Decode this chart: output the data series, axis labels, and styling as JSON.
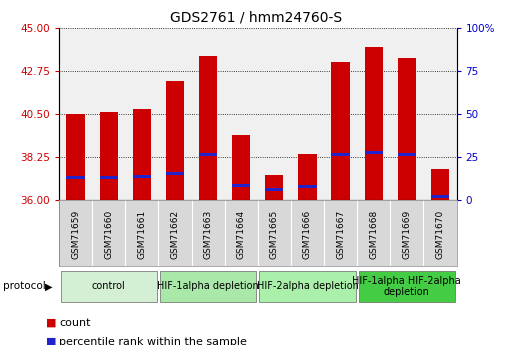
{
  "title": "GDS2761 / hmm24760-S",
  "samples": [
    "GSM71659",
    "GSM71660",
    "GSM71661",
    "GSM71662",
    "GSM71663",
    "GSM71664",
    "GSM71665",
    "GSM71666",
    "GSM71667",
    "GSM71668",
    "GSM71669",
    "GSM71670"
  ],
  "bar_values": [
    40.5,
    40.6,
    40.75,
    42.2,
    43.5,
    39.4,
    37.3,
    38.4,
    43.2,
    44.0,
    43.4,
    37.6
  ],
  "blue_values": [
    37.1,
    37.1,
    37.15,
    37.3,
    38.3,
    36.7,
    36.5,
    36.65,
    38.3,
    38.4,
    38.3,
    36.1
  ],
  "y_min": 36,
  "y_max": 45,
  "y_ticks_left": [
    36,
    38.25,
    40.5,
    42.75,
    45
  ],
  "y_ticks_right": [
    0,
    25,
    50,
    75,
    100
  ],
  "bar_color": "#cc0000",
  "blue_color": "#2222cc",
  "bar_width": 0.55,
  "groups": [
    {
      "label": "control",
      "start": 0,
      "end": 3,
      "color": "#d4f0d4"
    },
    {
      "label": "HIF-1alpha depletion",
      "start": 3,
      "end": 6,
      "color": "#aae8aa"
    },
    {
      "label": "HIF-2alpha depletion",
      "start": 6,
      "end": 9,
      "color": "#aaf0aa"
    },
    {
      "label": "HIF-1alpha HIF-2alpha\ndepletion",
      "start": 9,
      "end": 12,
      "color": "#44cc44"
    }
  ],
  "bar_color_red": "#cc0000",
  "right_axis_color": "#0000cc",
  "title_fontsize": 10,
  "tick_fontsize": 7.5,
  "sample_tick_fontsize": 6.5,
  "group_label_fontsize": 7,
  "legend_fontsize": 8,
  "xtick_bg": "#d8d8d8",
  "plot_bg": "#f0f0f0"
}
